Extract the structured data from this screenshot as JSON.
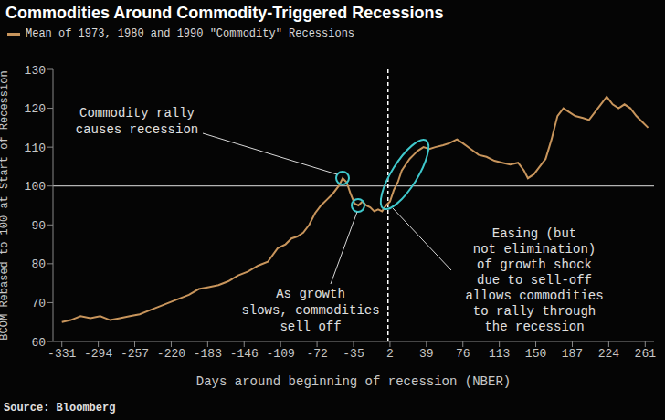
{
  "chart_data": {
    "type": "line",
    "title": "Commodities Around Commodity-Triggered Recessions",
    "x_label": "Days around beginning of recession (NBER)",
    "y_label": "BCOM Rebased to 100 at Start of Recession",
    "source": "Source: Bloomberg",
    "x": [
      -331,
      -322,
      -312,
      -302,
      -292,
      -282,
      -272,
      -262,
      -252,
      -242,
      -232,
      -222,
      -212,
      -202,
      -192,
      -182,
      -172,
      -162,
      -152,
      -142,
      -132,
      -122,
      -112,
      -104,
      -98,
      -92,
      -86,
      -80,
      -74,
      -68,
      -62,
      -56,
      -50,
      -46,
      -42,
      -38,
      -34,
      -30,
      -26,
      -22,
      -18,
      -14,
      -10,
      -6,
      -2,
      2,
      6,
      10,
      14,
      18,
      22,
      26,
      30,
      36,
      42,
      48,
      56,
      62,
      70,
      76,
      84,
      92,
      100,
      108,
      116,
      124,
      132,
      138,
      142,
      148,
      154,
      160,
      166,
      172,
      178,
      184,
      190,
      198,
      204,
      210,
      216,
      222,
      228,
      234,
      240,
      246,
      252,
      258,
      264
    ],
    "series": [
      {
        "name": "Mean of 1973, 1980 and 1990 \"Commodity\" Recessions",
        "color": "#c8955c",
        "values": [
          65,
          65.5,
          66.5,
          66,
          66.5,
          65.5,
          66,
          66.5,
          67,
          68,
          69,
          70,
          71,
          72,
          73.5,
          74,
          74.5,
          75.5,
          77,
          78,
          79.5,
          80.5,
          84,
          85,
          86.5,
          87,
          88,
          90,
          93,
          95,
          96.5,
          98,
          100,
          102,
          101,
          98,
          95.5,
          95,
          96,
          95,
          94.5,
          93.5,
          94,
          93.5,
          95,
          96,
          99,
          101,
          104,
          105.5,
          107,
          108,
          109,
          110,
          109.5,
          110,
          110.5,
          111,
          112,
          111,
          109.5,
          108,
          107.5,
          106.5,
          106,
          105.5,
          106,
          104,
          102,
          103,
          105,
          107,
          112,
          118,
          120,
          119,
          118,
          117.5,
          117,
          119,
          121,
          123,
          121,
          120,
          121,
          120,
          118,
          116.5,
          115
        ]
      }
    ],
    "xlim": [
      -340,
      270
    ],
    "xticks": [
      -331,
      -294,
      -257,
      -220,
      -183,
      -146,
      -109,
      -72,
      -35,
      2,
      39,
      76,
      113,
      150,
      187,
      224,
      261
    ],
    "ylim": [
      60,
      130
    ],
    "yticks": [
      60,
      70,
      80,
      90,
      100,
      110,
      120,
      130
    ],
    "reference_lines": {
      "x": 0,
      "y": 100
    },
    "annotations": [
      "Commodity rally\ncauses recession",
      "As growth\nslows, commodities\nsell off",
      "Easing (but\nnot elimination)\nof growth shock\ndue to sell-off\nallows commodities\nto rally through\nthe recession"
    ],
    "grid": false,
    "legend": "top-left"
  }
}
